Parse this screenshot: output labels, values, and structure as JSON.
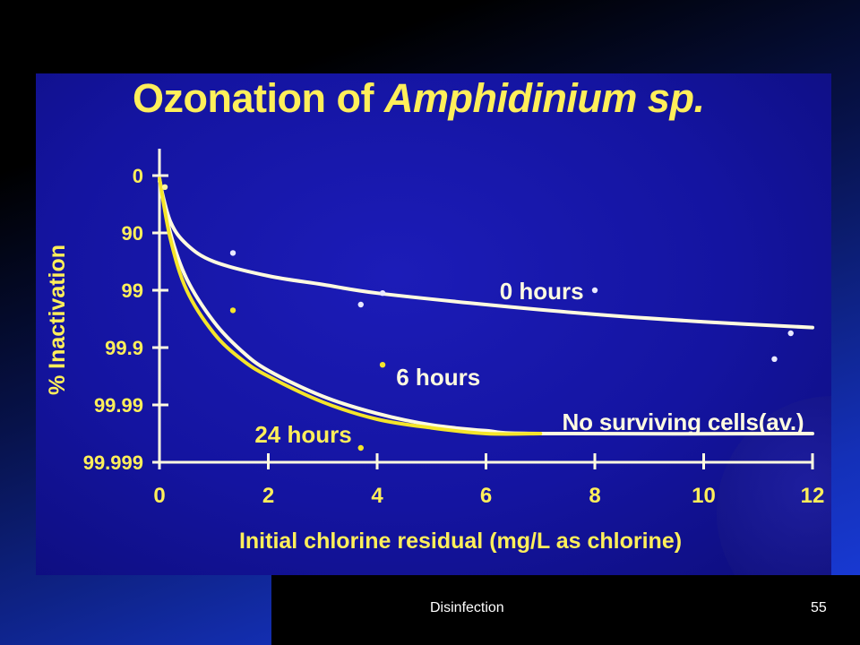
{
  "slide": {
    "footer_text": "Disinfection",
    "page_number": "55"
  },
  "chart_data": {
    "type": "line",
    "title_main": "Ozonation of ",
    "title_species": "Amphidinium sp.",
    "xlabel": "Initial chlorine residual (mg/L as chlorine)",
    "ylabel": "% Inactivation",
    "xlim": [
      0,
      12
    ],
    "x_ticks": [
      0,
      2,
      4,
      6,
      8,
      10,
      12
    ],
    "y_ticks": [
      "0",
      "90",
      "99",
      "99.9",
      "99.99",
      "99.999"
    ],
    "y_scale": "log-inactivation (tick index = log reduction, 0 to 5)",
    "grid": false,
    "series": [
      {
        "name": "0 hours",
        "color": "#fffbe0",
        "x": [
          0,
          0.2,
          0.5,
          1,
          2,
          3,
          4,
          6,
          8,
          10,
          12
        ],
        "y_log_reduction": [
          0.1,
          0.8,
          1.2,
          1.5,
          1.75,
          1.9,
          2.05,
          2.25,
          2.42,
          2.55,
          2.65
        ]
      },
      {
        "name": "6 hours",
        "color": "#fffbe0",
        "x": [
          0,
          0.2,
          0.5,
          1,
          1.5,
          2,
          3,
          4,
          5,
          6,
          7,
          12
        ],
        "y_log_reduction": [
          0.05,
          1.0,
          1.8,
          2.55,
          3.05,
          3.4,
          3.85,
          4.15,
          4.35,
          4.45,
          4.5,
          4.5
        ]
      },
      {
        "name": "24 hours",
        "color": "#f5e52a",
        "x": [
          0,
          0.2,
          0.5,
          1,
          1.5,
          2,
          3,
          4,
          5,
          6,
          7
        ],
        "y_log_reduction": [
          0.05,
          1.1,
          2.0,
          2.75,
          3.2,
          3.5,
          3.95,
          4.25,
          4.4,
          4.5,
          4.5
        ]
      }
    ],
    "points": [
      {
        "x": 0.1,
        "y_log_reduction": 0.2,
        "color": "#fff6a0"
      },
      {
        "x": 1.35,
        "y_log_reduction": 1.35,
        "color": "#e8e8ff"
      },
      {
        "x": 1.35,
        "y_log_reduction": 2.35,
        "color": "#f5e52a"
      },
      {
        "x": 3.7,
        "y_log_reduction": 2.25,
        "color": "#e8e8ff"
      },
      {
        "x": 4.1,
        "y_log_reduction": 2.05,
        "color": "#e8e8ff"
      },
      {
        "x": 4.1,
        "y_log_reduction": 3.3,
        "color": "#f5e52a"
      },
      {
        "x": 3.7,
        "y_log_reduction": 4.75,
        "color": "#f5e52a"
      },
      {
        "x": 8.0,
        "y_log_reduction": 2.0,
        "color": "#e8e8ff"
      },
      {
        "x": 11.6,
        "y_log_reduction": 2.75,
        "color": "#e8e8ff"
      },
      {
        "x": 11.3,
        "y_log_reduction": 3.2,
        "color": "#e8e8ff"
      }
    ],
    "annotations": [
      {
        "text": "0 hours",
        "color": "#fffbe0"
      },
      {
        "text": "6 hours",
        "color": "#fffbe0"
      },
      {
        "text": "24 hours",
        "color": "#ffef5a"
      },
      {
        "text": "No surviving cells(av.)",
        "color": "#fffbe0"
      }
    ]
  }
}
